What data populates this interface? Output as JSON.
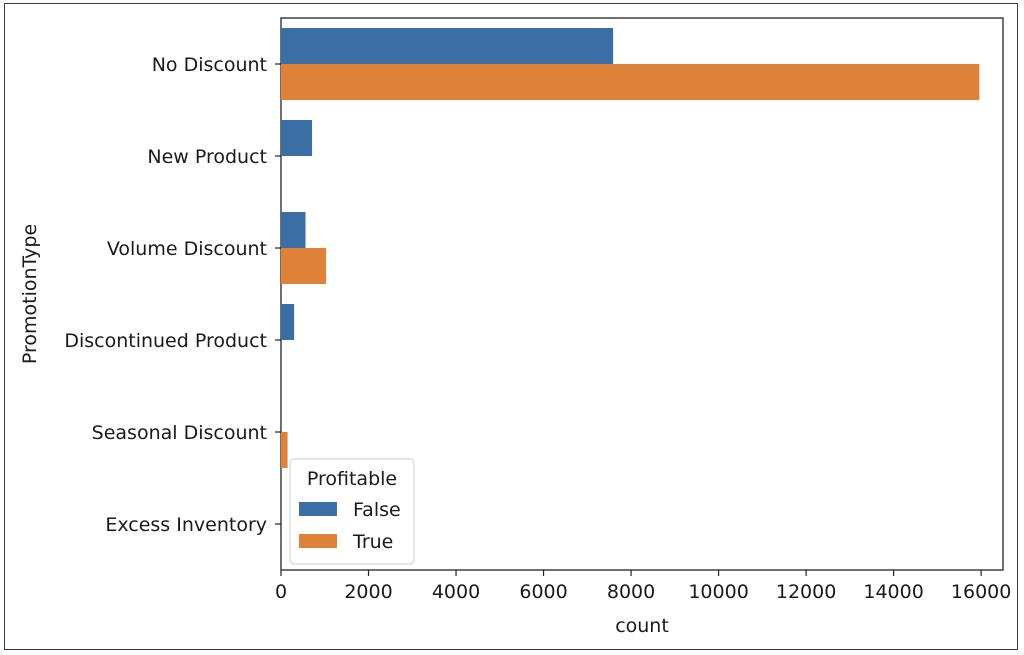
{
  "chart_data": {
    "type": "bar",
    "orientation": "horizontal",
    "title": "",
    "xlabel": "count",
    "ylabel": "PromotionType",
    "categories": [
      "No Discount",
      "New Product",
      "Volume Discount",
      "Discontinued Product",
      "Seasonal Discount",
      "Excess Inventory"
    ],
    "series": [
      {
        "name": "False",
        "color": "#3a6ea5",
        "values": [
          7590,
          710,
          560,
          300,
          0,
          0
        ]
      },
      {
        "name": "True",
        "color": "#de8139",
        "values": [
          15960,
          0,
          1030,
          0,
          150,
          0
        ]
      }
    ],
    "xlim": [
      0,
      16500
    ],
    "xticks": [
      0,
      2000,
      4000,
      6000,
      8000,
      10000,
      12000,
      14000,
      16000
    ],
    "xtick_labels": [
      "0",
      "2000",
      "4000",
      "6000",
      "8000",
      "10000",
      "12000",
      "14000",
      "16000"
    ],
    "grid": false,
    "legend": {
      "title": "Profitable",
      "placement": "lower-left",
      "entries": [
        "False",
        "True"
      ]
    }
  }
}
